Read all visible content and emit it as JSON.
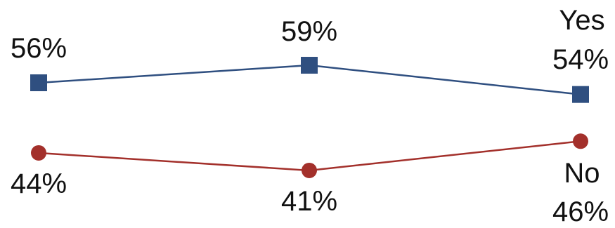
{
  "chart_data": {
    "type": "line",
    "categories": [
      "",
      "",
      ""
    ],
    "series": [
      {
        "name": "Yes",
        "values": [
          56,
          59,
          54
        ],
        "labels": [
          "56%",
          "59%",
          "54%"
        ],
        "color": "#2f4f80",
        "marker": "square"
      },
      {
        "name": "No",
        "values": [
          44,
          41,
          46
        ],
        "labels": [
          "44%",
          "41%",
          "46%"
        ],
        "color": "#a3302b",
        "marker": "circle"
      }
    ],
    "title": "",
    "xlabel": "",
    "ylabel": "",
    "grid": false,
    "legend": "inline-right"
  }
}
